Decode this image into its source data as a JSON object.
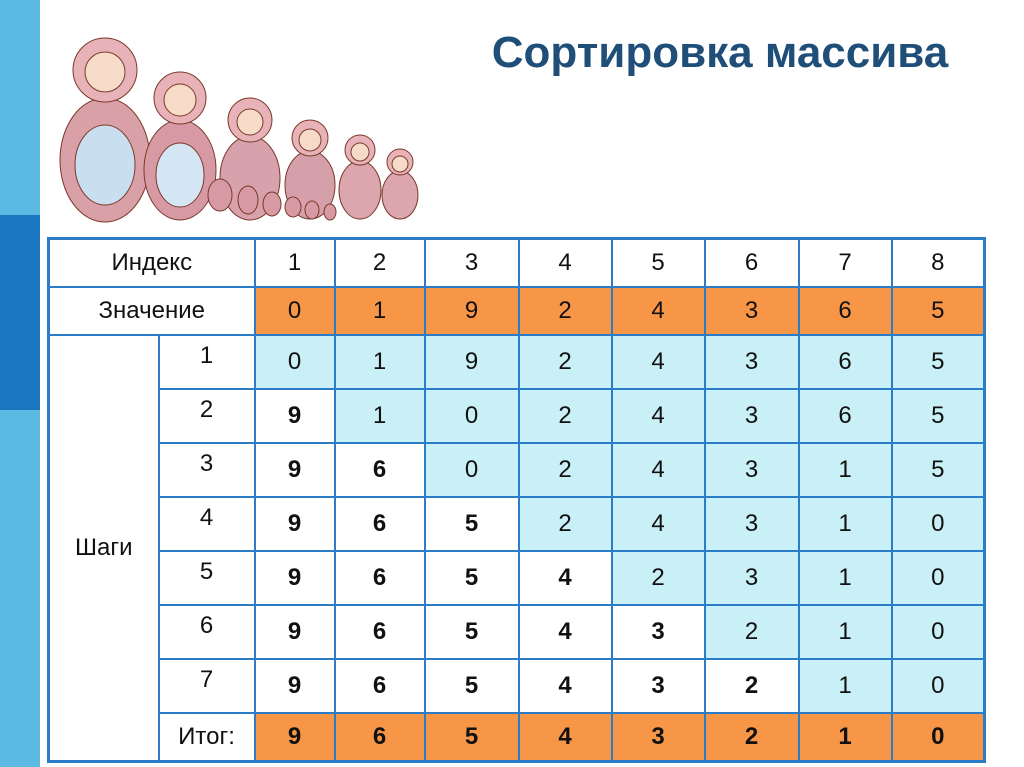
{
  "title": "Сортировка массива",
  "table": {
    "header": {
      "label": "Индекс",
      "cells": [
        1,
        2,
        3,
        4,
        5,
        6,
        7,
        8
      ]
    },
    "value_row": {
      "label": "Значение",
      "cells": [
        0,
        1,
        9,
        2,
        4,
        3,
        6,
        5
      ]
    },
    "steps_label": "Шаги",
    "steps": [
      {
        "label": 1,
        "cells": [
          0,
          1,
          9,
          2,
          4,
          3,
          6,
          5
        ]
      },
      {
        "label": 2,
        "cells": [
          9,
          1,
          0,
          2,
          4,
          3,
          6,
          5
        ]
      },
      {
        "label": 3,
        "cells": [
          9,
          6,
          0,
          2,
          4,
          3,
          1,
          5
        ]
      },
      {
        "label": 4,
        "cells": [
          9,
          6,
          5,
          2,
          4,
          3,
          1,
          0
        ]
      },
      {
        "label": 5,
        "cells": [
          9,
          6,
          5,
          4,
          2,
          3,
          1,
          0
        ]
      },
      {
        "label": 6,
        "cells": [
          9,
          6,
          5,
          4,
          3,
          2,
          1,
          0
        ]
      },
      {
        "label": 7,
        "cells": [
          9,
          6,
          5,
          4,
          3,
          2,
          1,
          0
        ]
      }
    ],
    "total": {
      "label": "Итог:",
      "cells": [
        9,
        6,
        5,
        4,
        3,
        2,
        1,
        0
      ]
    }
  }
}
